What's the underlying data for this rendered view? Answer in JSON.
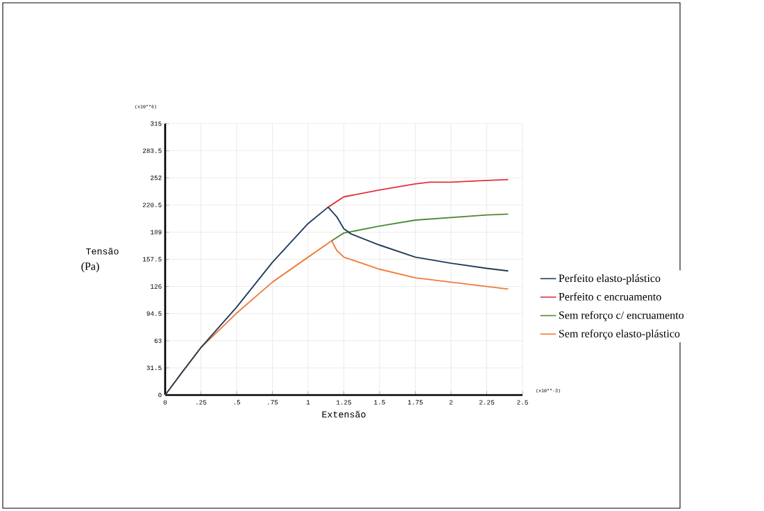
{
  "chart_data": {
    "type": "line",
    "xlabel": "Extensão",
    "ylabel": "Tensão",
    "annotations": [
      "(x10**6)",
      "(x10**-3)",
      "(Pa)"
    ],
    "xlim": [
      0,
      2.5
    ],
    "ylim": [
      0,
      315
    ],
    "xticks": [
      0,
      {
        "value": 0.25,
        "label": ".25"
      },
      {
        "value": 0.5,
        "label": ".5"
      },
      {
        "value": 0.75,
        "label": ".75"
      },
      1,
      1.25,
      1.5,
      1.75,
      2,
      2.25,
      2.5
    ],
    "yticks": [
      0,
      31.5,
      63,
      94.5,
      126,
      157.5,
      189,
      220.5,
      252,
      283.5,
      315
    ],
    "grid": true,
    "legend": "right",
    "marker": "none",
    "line_style": "solid",
    "series": [
      {
        "name": "Perfeito elasto-plástico",
        "color": "#1f3a5a",
        "x": [
          0,
          0.125,
          0.25,
          0.5,
          0.75,
          1,
          1.14,
          1.2,
          1.25,
          1.3,
          1.5,
          1.75,
          2,
          2.25,
          2.4
        ],
        "values": [
          0,
          28,
          55,
          102,
          154,
          199,
          218,
          207,
          193,
          187,
          174,
          160,
          153,
          147,
          144
        ]
      },
      {
        "name": "Perfeito c encruamento",
        "color": "#e0303a",
        "x": [
          1.14,
          1.25,
          1.5,
          1.75,
          1.85,
          2,
          2.25,
          2.4
        ],
        "values": [
          218,
          230,
          238,
          245,
          247,
          247,
          249,
          250
        ]
      },
      {
        "name": "Sem reforço c/ encruamento",
        "color": "#4e8a30",
        "x": [
          1.165,
          1.25,
          1.5,
          1.75,
          2,
          2.25,
          2.4
        ],
        "values": [
          179,
          188,
          196,
          203,
          206,
          209,
          210
        ]
      },
      {
        "name": "Sem reforço elasto-plástico",
        "color": "#f07a3a",
        "x": [
          0,
          0.25,
          0.5,
          0.75,
          1,
          1.165,
          1.2,
          1.25,
          1.5,
          1.75,
          2,
          2.25,
          2.4
        ],
        "values": [
          0,
          55,
          95,
          131,
          160,
          179,
          168,
          160,
          146,
          136,
          131,
          126,
          123
        ]
      }
    ]
  }
}
